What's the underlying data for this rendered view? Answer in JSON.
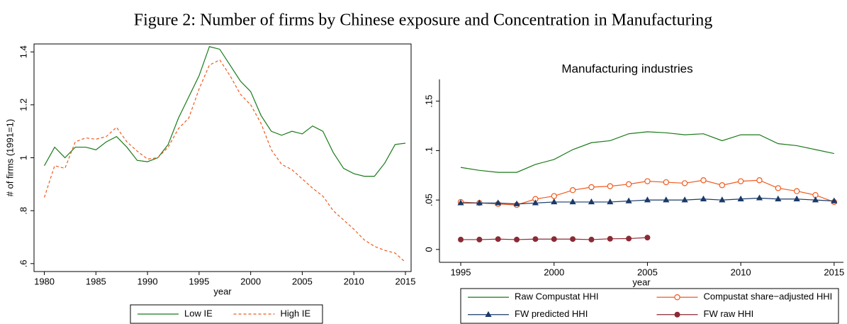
{
  "title": "Figure 2: Number of firms by Chinese exposure and Concentration in Manufacturing",
  "chart_data": [
    {
      "type": "line",
      "x_label": "year",
      "y_label": "# of firms (1991=1)",
      "x": [
        1980,
        1981,
        1982,
        1983,
        1984,
        1985,
        1986,
        1987,
        1988,
        1989,
        1990,
        1991,
        1992,
        1993,
        1994,
        1995,
        1996,
        1997,
        1998,
        1999,
        2000,
        2001,
        2002,
        2003,
        2004,
        2005,
        2006,
        2007,
        2008,
        2009,
        2010,
        2011,
        2012,
        2013,
        2014,
        2015
      ],
      "series": [
        {
          "name": "Low IE",
          "color": "#1a7a1a",
          "dash": false,
          "values": [
            0.97,
            1.04,
            1.0,
            1.04,
            1.04,
            1.03,
            1.06,
            1.08,
            1.04,
            0.99,
            0.985,
            1.0,
            1.05,
            1.15,
            1.23,
            1.31,
            1.42,
            1.41,
            1.35,
            1.29,
            1.25,
            1.16,
            1.1,
            1.085,
            1.1,
            1.09,
            1.12,
            1.1,
            1.02,
            0.96,
            0.94,
            0.93,
            0.93,
            0.98,
            1.05,
            1.055
          ]
        },
        {
          "name": "High IE",
          "color": "#f05a1e",
          "dash": true,
          "values": [
            0.85,
            0.97,
            0.96,
            1.06,
            1.075,
            1.07,
            1.08,
            1.115,
            1.06,
            1.025,
            0.995,
            1.0,
            1.04,
            1.11,
            1.15,
            1.26,
            1.35,
            1.37,
            1.31,
            1.24,
            1.2,
            1.13,
            1.03,
            0.975,
            0.955,
            0.92,
            0.885,
            0.855,
            0.8,
            0.765,
            0.73,
            0.69,
            0.665,
            0.65,
            0.64,
            0.605
          ]
        }
      ],
      "xlim": [
        1979.0,
        2015.55
      ],
      "xticks": [
        1980,
        1985,
        1990,
        1995,
        2000,
        2005,
        2010,
        2015
      ],
      "ylim": [
        0.57,
        1.43
      ],
      "yticks": [
        {
          "value": 0.6,
          "label": ".6"
        },
        {
          "value": 0.8,
          "label": ".8"
        },
        1,
        1.2,
        1.4
      ],
      "legend": "bottom"
    },
    {
      "type": "line",
      "title": "Manufacturing industries",
      "x_label": "year",
      "x": [
        1995,
        1996,
        1997,
        1998,
        1999,
        2000,
        2001,
        2002,
        2003,
        2004,
        2005,
        2006,
        2007,
        2008,
        2009,
        2010,
        2011,
        2012,
        2013,
        2014,
        2015
      ],
      "series": [
        {
          "name": "Raw Compustat HHI",
          "color": "#1a7a1a",
          "marker": "none",
          "values": [
            0.083,
            0.08,
            0.078,
            0.078,
            0.086,
            0.091,
            0.101,
            0.108,
            0.11,
            0.117,
            0.119,
            0.118,
            0.116,
            0.117,
            0.11,
            0.116,
            0.116,
            0.107,
            0.105,
            0.101,
            0.097
          ]
        },
        {
          "name": "Compustat share−adjusted HHI",
          "color": "#f05a1e",
          "marker": "circle-open",
          "values": [
            0.048,
            0.047,
            0.046,
            0.045,
            0.051,
            0.054,
            0.06,
            0.063,
            0.064,
            0.066,
            0.069,
            0.068,
            0.067,
            0.07,
            0.065,
            0.069,
            0.07,
            0.062,
            0.059,
            0.055,
            0.048
          ]
        },
        {
          "name": "FW predicted HHI",
          "color": "#1a3a6a",
          "marker": "triangle",
          "values": [
            0.047,
            0.047,
            0.047,
            0.046,
            0.047,
            0.048,
            0.048,
            0.048,
            0.048,
            0.049,
            0.05,
            0.05,
            0.05,
            0.051,
            0.05,
            0.051,
            0.052,
            0.051,
            0.051,
            0.05,
            0.049
          ]
        },
        {
          "name": "FW raw HHI",
          "color": "#8b2a35",
          "marker": "circle",
          "values": [
            0.01,
            0.01,
            0.0105,
            0.01,
            0.0105,
            0.0105,
            0.0105,
            0.01,
            0.0108,
            0.011,
            0.012,
            null,
            null,
            null,
            null,
            null,
            null,
            null,
            null,
            null,
            null
          ]
        }
      ],
      "xlim": [
        1993.86,
        2015.5
      ],
      "xticks": [
        1995,
        2000,
        2005,
        2010,
        2015
      ],
      "ylim": [
        -0.013,
        0.172
      ],
      "yticks": [
        0,
        {
          "value": 0.05,
          "label": ".05"
        },
        {
          "value": 0.1,
          "label": ".1"
        },
        {
          "value": 0.15,
          "label": ".15"
        }
      ],
      "legend": "bottom"
    }
  ]
}
